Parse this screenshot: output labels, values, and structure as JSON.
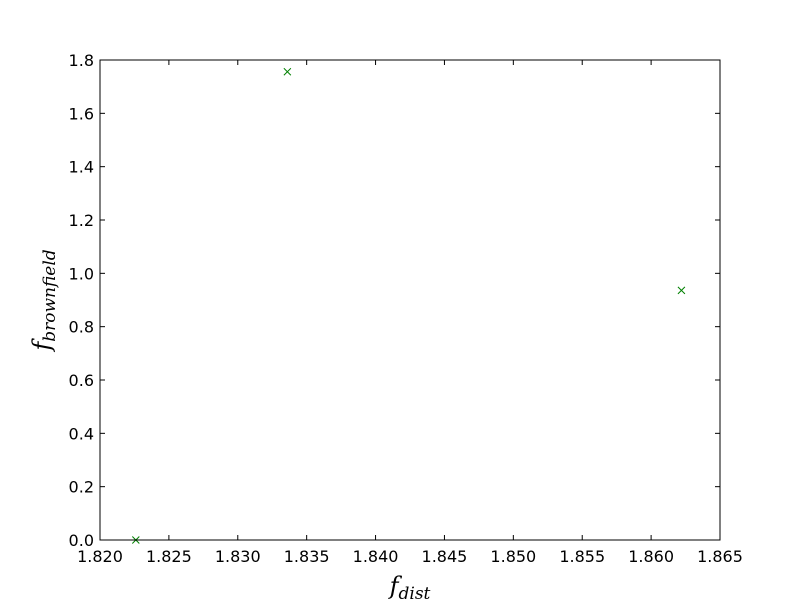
{
  "chart_data": {
    "type": "scatter",
    "title": "",
    "xlabel": {
      "main": "f",
      "sub": "dist"
    },
    "ylabel": {
      "main": "f",
      "sub": "brownfield"
    },
    "xlim": [
      1.82,
      1.865
    ],
    "ylim": [
      0.0,
      1.8
    ],
    "xticks": [
      "1.820",
      "1.825",
      "1.830",
      "1.835",
      "1.840",
      "1.845",
      "1.850",
      "1.855",
      "1.860",
      "1.865"
    ],
    "yticks": [
      "0.0",
      "0.2",
      "0.4",
      "0.6",
      "0.8",
      "1.0",
      "1.2",
      "1.4",
      "1.6",
      "1.8"
    ],
    "grid": false,
    "legend": "none",
    "marker": "x",
    "series": [
      {
        "color": "#008000",
        "x": [
          1.8226,
          1.8336,
          1.8622
        ],
        "y": [
          0.0,
          1.756,
          0.936
        ]
      }
    ]
  }
}
